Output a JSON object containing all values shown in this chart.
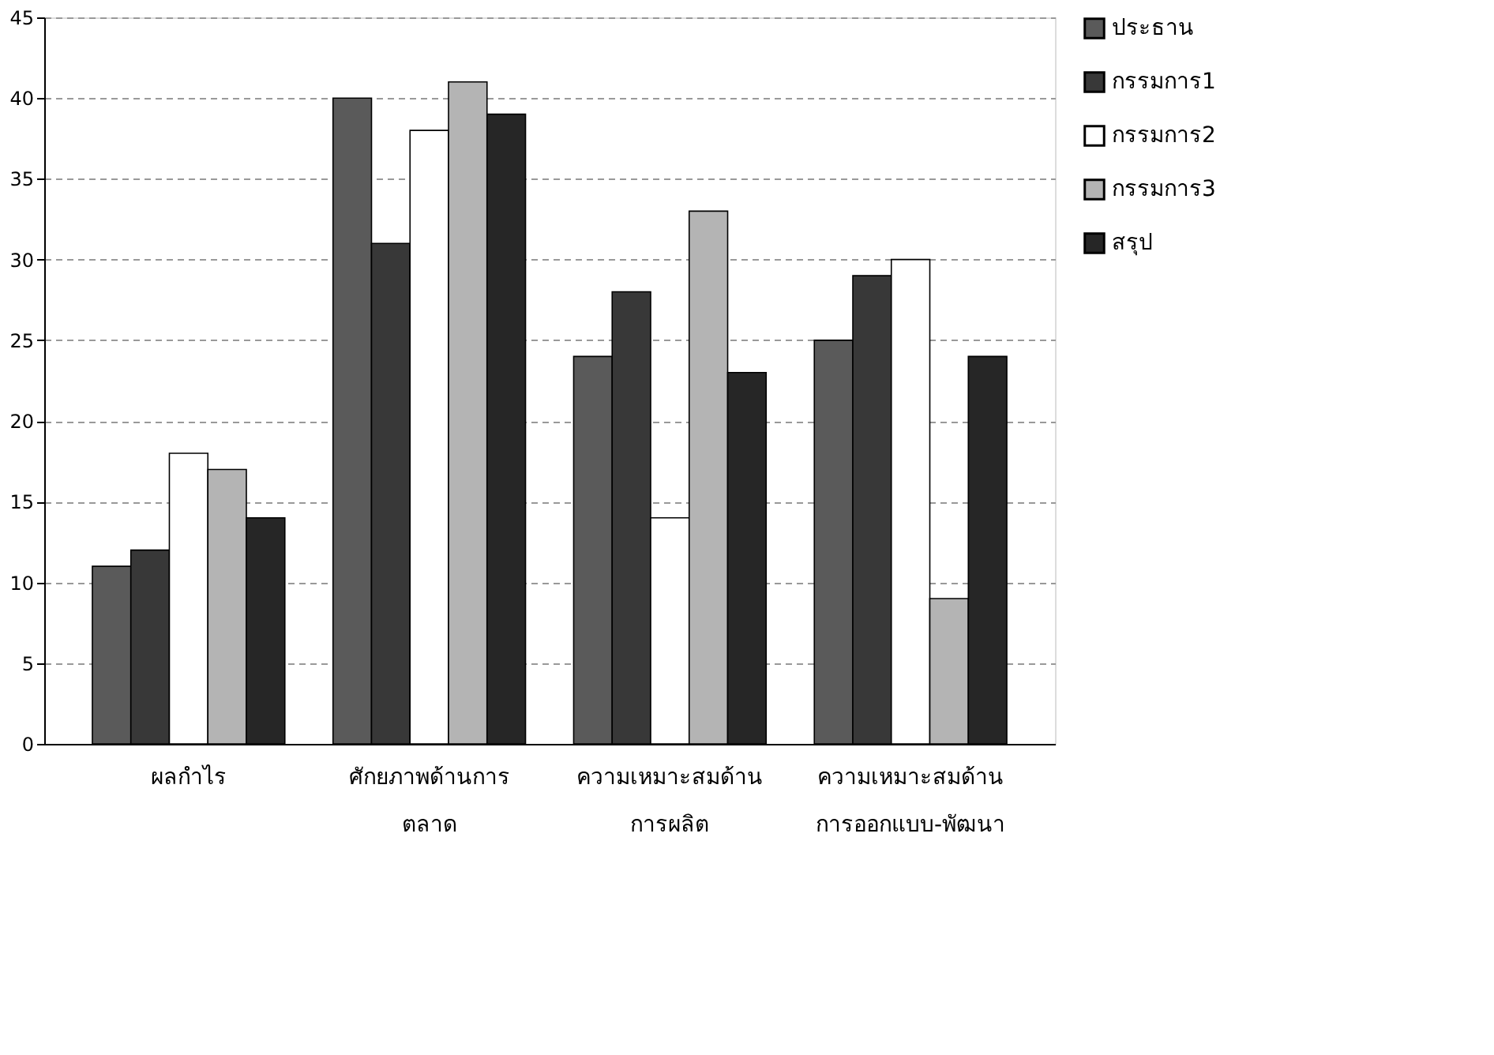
{
  "chart_data": {
    "type": "bar",
    "categories": [
      "ผลกำไร",
      "ศักยภาพด้านการ\nตลาด",
      "ความเหมาะสมด้าน\nการผลิต",
      "ความเหมาะสมด้าน\nการออกแบบ-พัฒนา"
    ],
    "series": [
      {
        "name": "ประธาน",
        "color": "#5a5a5a",
        "values": [
          11,
          40,
          24,
          25
        ]
      },
      {
        "name": "กรรมการ1",
        "color": "#383838",
        "values": [
          12,
          31,
          28,
          29
        ]
      },
      {
        "name": "กรรมการ2",
        "color": "#ffffff",
        "values": [
          18,
          38,
          14,
          30
        ]
      },
      {
        "name": "กรรมการ3",
        "color": "#b4b4b4",
        "values": [
          17,
          41,
          33,
          9
        ]
      },
      {
        "name": "สรุป",
        "color": "#262626",
        "values": [
          14,
          39,
          23,
          24
        ]
      }
    ],
    "ylim": [
      0,
      45
    ],
    "yticks": [
      0,
      5,
      10,
      15,
      20,
      25,
      30,
      35,
      40,
      45
    ],
    "grid": "y",
    "legend": "right"
  }
}
